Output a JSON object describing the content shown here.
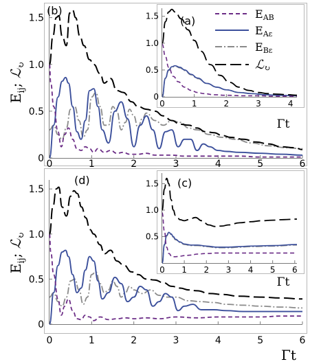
{
  "colors": {
    "E_AB": "#6b2c86",
    "E_AE": "#3b4f9b",
    "E_BE": "#8a8a8a",
    "L": "#000000"
  },
  "legend": [
    {
      "key": "E_AB",
      "main": "E",
      "sub": "AB",
      "dash": "6,4"
    },
    {
      "key": "E_AE",
      "main": "E",
      "sub": "Aε",
      "dash": ""
    },
    {
      "key": "E_BE",
      "main": "E",
      "sub": "Bε",
      "dash": "10,3,2,3"
    },
    {
      "key": "L",
      "main": "ℒ",
      "sub": "↻",
      "dash": "16,6"
    }
  ],
  "labels": {
    "ylabel": "E",
    "ylabel_sub": "ij",
    "ylabel_sep": "; ",
    "ylabel_L": "ℒ",
    "ylabel_L_sub": "↻",
    "xlabel": "Γt"
  },
  "chart_data": [
    {
      "id": "b",
      "panel_label": "(b)",
      "type": "line",
      "xlim": [
        0,
        6
      ],
      "ylim": [
        0,
        1.6
      ],
      "xticks": [
        "0",
        "1",
        "2",
        "3",
        "4",
        "5",
        "6"
      ],
      "yticks": [
        "0",
        "0.5",
        "1.0",
        "1.5"
      ],
      "series": [
        {
          "key": "L",
          "x": [
            0,
            0.08,
            0.16,
            0.22,
            0.3,
            0.4,
            0.48,
            0.55,
            0.62,
            0.72,
            0.82,
            0.95,
            1.05,
            1.2,
            1.3,
            1.45,
            1.6,
            1.75,
            1.95,
            2.1,
            2.3,
            2.5,
            2.7,
            2.9,
            3.1,
            3.3,
            3.5,
            3.7,
            3.9,
            4.1,
            4.3,
            4.6,
            4.9,
            5.2,
            5.5,
            5.8,
            6.0
          ],
          "y": [
            1.0,
            1.3,
            1.5,
            1.52,
            1.3,
            1.2,
            1.55,
            1.58,
            1.5,
            1.3,
            1.2,
            1.05,
            1.0,
            0.9,
            0.8,
            0.85,
            0.72,
            0.7,
            0.6,
            0.55,
            0.52,
            0.5,
            0.45,
            0.4,
            0.36,
            0.35,
            0.32,
            0.28,
            0.27,
            0.24,
            0.22,
            0.2,
            0.17,
            0.15,
            0.12,
            0.11,
            0.09
          ]
        },
        {
          "key": "E_AB",
          "x": [
            0,
            0.03,
            0.1,
            0.2,
            0.28,
            0.36,
            0.45,
            0.55,
            0.65,
            0.75,
            0.85,
            0.95,
            1.05,
            1.15,
            1.3,
            1.45,
            1.6,
            1.75,
            1.9,
            2.1,
            2.3,
            2.5,
            2.7,
            2.9,
            3.2,
            3.6,
            4.0,
            4.5,
            5.0,
            5.5,
            6.0
          ],
          "y": [
            1.0,
            0.8,
            0.55,
            0.28,
            0.12,
            0.25,
            0.32,
            0.2,
            0.1,
            0.08,
            0.12,
            0.1,
            0.06,
            0.1,
            0.06,
            0.08,
            0.05,
            0.06,
            0.04,
            0.04,
            0.05,
            0.03,
            0.03,
            0.03,
            0.02,
            0.02,
            0.02,
            0.02,
            0.01,
            0.01,
            0.01
          ]
        },
        {
          "key": "E_AE",
          "x": [
            0,
            0.1,
            0.2,
            0.3,
            0.38,
            0.45,
            0.55,
            0.65,
            0.75,
            0.85,
            0.95,
            1.05,
            1.15,
            1.25,
            1.4,
            1.55,
            1.7,
            1.85,
            2.0,
            2.15,
            2.3,
            2.45,
            2.6,
            2.75,
            2.9,
            3.05,
            3.2,
            3.35,
            3.5,
            3.65,
            3.8,
            4.0,
            4.2,
            4.5,
            5.0,
            5.5,
            6.0
          ],
          "y": [
            0,
            0.35,
            0.65,
            0.82,
            0.86,
            0.8,
            0.55,
            0.28,
            0.2,
            0.4,
            0.72,
            0.74,
            0.55,
            0.3,
            0.16,
            0.5,
            0.6,
            0.42,
            0.12,
            0.35,
            0.45,
            0.3,
            0.1,
            0.28,
            0.3,
            0.12,
            0.2,
            0.2,
            0.08,
            0.15,
            0.12,
            0.08,
            0.07,
            0.06,
            0.05,
            0.04,
            0.03
          ]
        },
        {
          "key": "E_BE",
          "x": [
            0,
            0.1,
            0.2,
            0.3,
            0.4,
            0.5,
            0.6,
            0.7,
            0.8,
            0.9,
            1.0,
            1.1,
            1.2,
            1.3,
            1.4,
            1.5,
            1.6,
            1.7,
            1.8,
            1.9,
            2.0,
            2.1,
            2.2,
            2.3,
            2.5,
            2.7,
            2.9,
            3.1,
            3.3,
            3.5,
            3.8,
            4.1,
            4.4,
            4.8,
            5.2,
            5.6,
            6.0
          ],
          "y": [
            0.3,
            0.35,
            0.25,
            0.2,
            0.32,
            0.52,
            0.55,
            0.4,
            0.22,
            0.3,
            0.65,
            0.7,
            0.55,
            0.35,
            0.35,
            0.55,
            0.5,
            0.3,
            0.38,
            0.52,
            0.45,
            0.32,
            0.42,
            0.48,
            0.4,
            0.35,
            0.4,
            0.38,
            0.32,
            0.3,
            0.25,
            0.22,
            0.2,
            0.16,
            0.13,
            0.11,
            0.1
          ]
        }
      ]
    },
    {
      "id": "a",
      "panel_label": "(a)",
      "type": "line",
      "xlim": [
        0,
        4.2
      ],
      "ylim": [
        0,
        1.65
      ],
      "xticks": [
        "0",
        "1",
        "2",
        "3",
        "4"
      ],
      "yticks": [
        "0",
        "0.5",
        "1.0",
        "1.5"
      ],
      "series": [
        {
          "key": "L",
          "x": [
            0,
            0.1,
            0.2,
            0.3,
            0.4,
            0.6,
            0.8,
            1.0,
            1.2,
            1.5,
            1.8,
            2.1,
            2.4,
            2.7,
            3.0,
            3.3,
            3.6,
            3.9,
            4.2
          ],
          "y": [
            1.0,
            1.4,
            1.58,
            1.63,
            1.58,
            1.45,
            1.25,
            1.05,
            0.85,
            0.6,
            0.4,
            0.27,
            0.18,
            0.12,
            0.08,
            0.06,
            0.05,
            0.04,
            0.03
          ]
        },
        {
          "key": "E_AB",
          "x": [
            0,
            0.1,
            0.2,
            0.35,
            0.5,
            0.7,
            0.9,
            1.1,
            1.3,
            1.6,
            2.0,
            2.5,
            3.0,
            3.5,
            4.2
          ],
          "y": [
            0.98,
            0.75,
            0.55,
            0.38,
            0.28,
            0.18,
            0.12,
            0.08,
            0.06,
            0.04,
            0.03,
            0.02,
            0.02,
            0.01,
            0.01
          ]
        },
        {
          "key": "E_AE",
          "x": [
            0,
            0.1,
            0.2,
            0.3,
            0.4,
            0.55,
            0.7,
            0.9,
            1.1,
            1.4,
            1.7,
            2.0,
            2.4,
            2.8,
            3.2,
            3.6,
            4.2
          ],
          "y": [
            0,
            0.35,
            0.5,
            0.56,
            0.58,
            0.55,
            0.5,
            0.42,
            0.35,
            0.25,
            0.18,
            0.13,
            0.08,
            0.06,
            0.04,
            0.03,
            0.02
          ]
        },
        {
          "key": "E_BE",
          "x": [
            0,
            0.1,
            0.2,
            0.3,
            0.4,
            0.55,
            0.7,
            0.9,
            1.1,
            1.4,
            1.7,
            2.0,
            2.4,
            2.8,
            3.2,
            3.6,
            4.2
          ],
          "y": [
            0,
            0.34,
            0.49,
            0.55,
            0.57,
            0.54,
            0.49,
            0.41,
            0.34,
            0.25,
            0.18,
            0.13,
            0.08,
            0.06,
            0.04,
            0.03,
            0.02
          ]
        }
      ]
    },
    {
      "id": "d",
      "panel_label": "(d)",
      "type": "line",
      "xlim": [
        0,
        6
      ],
      "ylim": [
        0,
        1.6
      ],
      "xticks": [
        "0",
        "1",
        "2",
        "3",
        "4",
        "5",
        "6"
      ],
      "yticks": [
        "0",
        "0.5",
        "1.0",
        "1.5"
      ],
      "series": [
        {
          "key": "L",
          "x": [
            0,
            0.08,
            0.16,
            0.22,
            0.3,
            0.4,
            0.5,
            0.58,
            0.66,
            0.76,
            0.86,
            0.96,
            1.05,
            1.2,
            1.3,
            1.45,
            1.6,
            1.75,
            1.95,
            2.1,
            2.3,
            2.5,
            2.7,
            2.9,
            3.1,
            3.3,
            3.5,
            3.8,
            4.1,
            4.5,
            5.0,
            5.5,
            6.0
          ],
          "y": [
            1.0,
            1.3,
            1.5,
            1.52,
            1.3,
            1.2,
            1.42,
            1.48,
            1.45,
            1.3,
            1.18,
            1.05,
            1.0,
            0.88,
            0.78,
            0.82,
            0.7,
            0.66,
            0.58,
            0.55,
            0.5,
            0.49,
            0.46,
            0.42,
            0.4,
            0.38,
            0.37,
            0.34,
            0.33,
            0.31,
            0.3,
            0.29,
            0.28
          ]
        },
        {
          "key": "E_AB",
          "x": [
            0,
            0.03,
            0.1,
            0.2,
            0.28,
            0.36,
            0.45,
            0.55,
            0.65,
            0.75,
            0.85,
            0.95,
            1.05,
            1.2,
            1.4,
            1.6,
            1.8,
            2.0,
            2.3,
            2.6,
            3.0,
            3.5,
            4.0,
            4.5,
            5.0,
            5.5,
            6.0
          ],
          "y": [
            1.0,
            0.8,
            0.55,
            0.28,
            0.1,
            0.2,
            0.28,
            0.15,
            0.06,
            0.05,
            0.1,
            0.08,
            0.04,
            0.08,
            0.05,
            0.06,
            0.07,
            0.06,
            0.07,
            0.06,
            0.08,
            0.07,
            0.08,
            0.08,
            0.08,
            0.09,
            0.09
          ]
        },
        {
          "key": "E_AE",
          "x": [
            0,
            0.1,
            0.2,
            0.3,
            0.38,
            0.45,
            0.55,
            0.65,
            0.75,
            0.85,
            0.95,
            1.05,
            1.15,
            1.25,
            1.4,
            1.55,
            1.7,
            1.85,
            2.0,
            2.15,
            2.3,
            2.45,
            2.6,
            2.75,
            2.9,
            3.05,
            3.2,
            3.4,
            3.6,
            3.9,
            4.2,
            4.6,
            5.0,
            5.5,
            6.0
          ],
          "y": [
            0,
            0.35,
            0.65,
            0.8,
            0.82,
            0.75,
            0.55,
            0.35,
            0.4,
            0.6,
            0.75,
            0.7,
            0.48,
            0.28,
            0.35,
            0.52,
            0.45,
            0.25,
            0.3,
            0.42,
            0.38,
            0.2,
            0.25,
            0.34,
            0.3,
            0.15,
            0.2,
            0.22,
            0.16,
            0.16,
            0.15,
            0.14,
            0.14,
            0.14,
            0.14
          ]
        },
        {
          "key": "E_BE",
          "x": [
            0,
            0.1,
            0.2,
            0.3,
            0.4,
            0.5,
            0.6,
            0.7,
            0.8,
            0.9,
            1.0,
            1.1,
            1.2,
            1.3,
            1.4,
            1.5,
            1.6,
            1.7,
            1.8,
            1.9,
            2.0,
            2.2,
            2.4,
            2.6,
            2.8,
            3.0,
            3.3,
            3.6,
            3.9,
            4.2,
            4.6,
            5.0,
            5.5,
            6.0
          ],
          "y": [
            0.3,
            0.35,
            0.25,
            0.2,
            0.3,
            0.48,
            0.5,
            0.38,
            0.22,
            0.3,
            0.55,
            0.58,
            0.45,
            0.35,
            0.38,
            0.48,
            0.42,
            0.3,
            0.35,
            0.42,
            0.38,
            0.34,
            0.38,
            0.32,
            0.3,
            0.3,
            0.26,
            0.25,
            0.24,
            0.22,
            0.21,
            0.2,
            0.19,
            0.18
          ]
        }
      ]
    },
    {
      "id": "c",
      "panel_label": "(c)",
      "type": "line",
      "xlim": [
        0,
        6.1
      ],
      "ylim": [
        0,
        1.7
      ],
      "xticks": [
        "0",
        "1",
        "2",
        "3",
        "4",
        "5",
        "6"
      ],
      "yticks": [
        "0.5",
        "1.0",
        "1.5"
      ],
      "series": [
        {
          "key": "L",
          "x": [
            0,
            0.1,
            0.2,
            0.3,
            0.4,
            0.5,
            0.6,
            0.7,
            0.8,
            1.0,
            1.2,
            1.5,
            1.8,
            2.1,
            2.4,
            2.7,
            3.0,
            3.5,
            4.0,
            4.5,
            5.0,
            5.5,
            6.1
          ],
          "y": [
            1.0,
            1.4,
            1.6,
            1.5,
            1.2,
            1.0,
            0.9,
            0.85,
            0.82,
            0.8,
            0.82,
            0.86,
            0.8,
            0.72,
            0.69,
            0.7,
            0.72,
            0.76,
            0.78,
            0.8,
            0.81,
            0.82,
            0.83
          ]
        },
        {
          "key": "E_AB",
          "x": [
            0,
            0.1,
            0.2,
            0.3,
            0.45,
            0.6,
            0.8,
            1.0,
            1.3,
            1.6,
            2.0,
            2.5,
            3.0,
            3.5,
            4.0,
            5.0,
            6.1
          ],
          "y": [
            0.95,
            0.6,
            0.3,
            0.18,
            0.12,
            0.12,
            0.13,
            0.14,
            0.15,
            0.17,
            0.18,
            0.19,
            0.19,
            0.19,
            0.19,
            0.19,
            0.19
          ]
        },
        {
          "key": "E_AE",
          "x": [
            0,
            0.1,
            0.2,
            0.3,
            0.4,
            0.5,
            0.6,
            0.8,
            1.0,
            1.3,
            1.6,
            2.0,
            2.5,
            3.0,
            3.5,
            4.0,
            5.0,
            6.1
          ],
          "y": [
            0,
            0.35,
            0.52,
            0.58,
            0.55,
            0.5,
            0.45,
            0.4,
            0.36,
            0.34,
            0.34,
            0.32,
            0.3,
            0.3,
            0.31,
            0.32,
            0.33,
            0.35
          ]
        },
        {
          "key": "E_BE",
          "x": [
            0,
            0.1,
            0.2,
            0.3,
            0.4,
            0.5,
            0.6,
            0.8,
            1.0,
            1.3,
            1.6,
            2.0,
            2.5,
            3.0,
            3.5,
            4.0,
            5.0,
            6.1
          ],
          "y": [
            0,
            0.34,
            0.51,
            0.57,
            0.54,
            0.49,
            0.44,
            0.39,
            0.35,
            0.33,
            0.33,
            0.31,
            0.29,
            0.29,
            0.3,
            0.31,
            0.32,
            0.34
          ]
        }
      ]
    }
  ]
}
